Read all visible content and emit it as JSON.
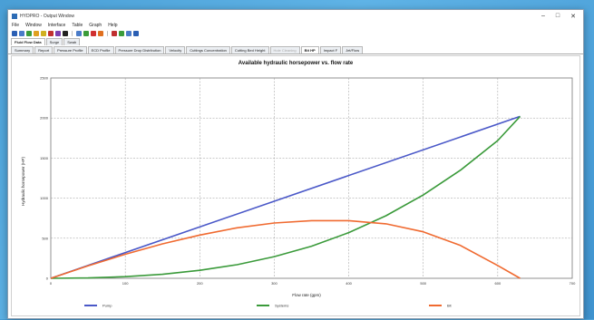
{
  "window": {
    "title": "HYDPRO - Output Window",
    "controls": [
      "–",
      "□",
      "✕"
    ]
  },
  "menu": [
    "File",
    "Window",
    "Interface",
    "Table",
    "Graph",
    "Help"
  ],
  "toolbar_colors": [
    "#2b5fb4",
    "#4a7bc8",
    "#3b9c3b",
    "#e0a020",
    "#d0b020",
    "#c03030",
    "#7a3fb0",
    "#222222",
    "#4a7bc8",
    "#3b9c3b",
    "#d03030",
    "#e07020",
    "#c03030",
    "#3b9c3b",
    "#4a7bc8",
    "#2b5fb4"
  ],
  "tabs_top": [
    {
      "label": "Fluid Flow Data",
      "active": true
    },
    {
      "label": "Surge",
      "active": false
    },
    {
      "label": "Swab",
      "active": false
    }
  ],
  "tabs_bottom": [
    {
      "label": "Summary",
      "state": "normal"
    },
    {
      "label": "Report",
      "state": "normal"
    },
    {
      "label": "Pressure Profile",
      "state": "normal"
    },
    {
      "label": "ECD Profile",
      "state": "normal"
    },
    {
      "label": "Pressure Drop Distribution",
      "state": "normal"
    },
    {
      "label": "Velocity",
      "state": "normal"
    },
    {
      "label": "Cuttings Concentration",
      "state": "normal"
    },
    {
      "label": "Cutting Bed Height",
      "state": "normal"
    },
    {
      "label": "Hole Cleaning",
      "state": "disabled"
    },
    {
      "label": "Bit HP",
      "state": "active"
    },
    {
      "label": "Impact F",
      "state": "normal"
    },
    {
      "label": "Jet/Flow",
      "state": "normal"
    }
  ],
  "chart_data": {
    "type": "line",
    "title": "Available hydraulic horsepower vs. flow rate",
    "xlabel": "Flow rate (gpm)",
    "ylabel": "Hydraulic horsepower (HP)",
    "xlim": [
      0,
      700
    ],
    "ylim": [
      0,
      2500
    ],
    "xticks": [
      0,
      100,
      200,
      300,
      400,
      500,
      600,
      700
    ],
    "yticks": [
      0,
      500,
      1000,
      1500,
      2000,
      2500
    ],
    "grid": true,
    "legend_position": "bottom",
    "series": [
      {
        "name": "Pump",
        "color": "#4a58c8",
        "x": [
          0,
          630
        ],
        "y": [
          0,
          2020
        ]
      },
      {
        "name": "Systems",
        "color": "#3a9a3a",
        "x": [
          0,
          50,
          100,
          150,
          200,
          250,
          300,
          350,
          400,
          450,
          500,
          550,
          600,
          630
        ],
        "y": [
          0,
          5,
          20,
          50,
          100,
          170,
          270,
          400,
          570,
          780,
          1040,
          1350,
          1720,
          2020
        ]
      },
      {
        "name": "Bit",
        "color": "#f06a30",
        "x": [
          0,
          50,
          100,
          150,
          200,
          250,
          300,
          350,
          400,
          450,
          500,
          550,
          600,
          630
        ],
        "y": [
          0,
          155,
          300,
          430,
          540,
          630,
          690,
          720,
          720,
          680,
          580,
          410,
          160,
          0
        ]
      }
    ]
  }
}
